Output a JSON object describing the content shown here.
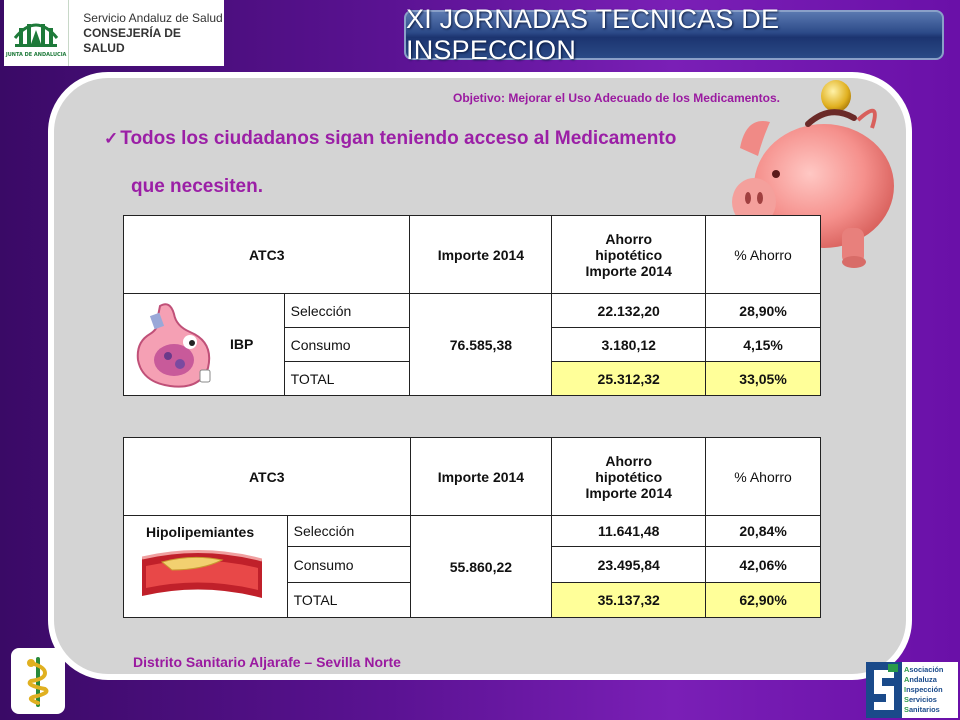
{
  "logo": {
    "line1": "Servicio Andaluz de Salud",
    "line2": "CONSEJERÍA DE SALUD",
    "emblem_caption": "JUNTA DE ANDALUCIA",
    "color": "#1e7a3a"
  },
  "header": {
    "title": "XI JORNADAS TECNICAS DE INSPECCION"
  },
  "slide": {
    "objective": "Objetivo: Mejorar el Uso Adecuado de los Medicamentos.",
    "bullet_line1": "Todos los ciudadanos sigan teniendo acceso al Medicamento",
    "bullet_line2": "que necesiten.",
    "check_icon": "✓",
    "accent_color": "#9b1fa6"
  },
  "tables": [
    {
      "headers": {
        "atc": "ATC3",
        "importe": "Importe 2014",
        "ahorro_l1": "Ahorro",
        "ahorro_l2": "hipotético",
        "ahorro_l3": "Importe 2014",
        "pct": "% Ahorro"
      },
      "category": "IBP",
      "importe": "76.585,38",
      "rows": [
        {
          "label": "Selección",
          "ahorro": "22.132,20",
          "pct": "28,90%"
        },
        {
          "label": "Consumo",
          "ahorro": "3.180,12",
          "pct": "4,15%"
        },
        {
          "label": "TOTAL",
          "ahorro": "25.312,32",
          "pct": "33,05%"
        }
      ]
    },
    {
      "headers": {
        "atc": "ATC3",
        "importe": "Importe 2014",
        "ahorro_l1": "Ahorro",
        "ahorro_l2": "hipotético",
        "ahorro_l3": "Importe 2014",
        "pct": "% Ahorro"
      },
      "category": "Hipolipemiantes",
      "importe": "55.860,22",
      "rows": [
        {
          "label": "Selección",
          "ahorro": "11.641,48",
          "pct": "20,84%"
        },
        {
          "label": "Consumo",
          "ahorro": "23.495,84",
          "pct": "42,06%"
        },
        {
          "label": "TOTAL",
          "ahorro": "35.137,32",
          "pct": "62,90%"
        }
      ]
    }
  ],
  "footer": {
    "district": "Distrito Sanitario Aljarafe – Sevilla Norte",
    "association": [
      {
        "initial": "A",
        "rest": "sociación"
      },
      {
        "initial": "A",
        "rest": "ndaluza"
      },
      {
        "initial": "I",
        "rest": "nspección"
      },
      {
        "initial": "S",
        "rest": "ervicios"
      },
      {
        "initial": "S",
        "rest": "anitarios"
      }
    ]
  },
  "colors": {
    "background": "#5a1292",
    "panel": "#d4d4d4",
    "highlight": "#ffff99",
    "banner": "#2c4a88"
  }
}
